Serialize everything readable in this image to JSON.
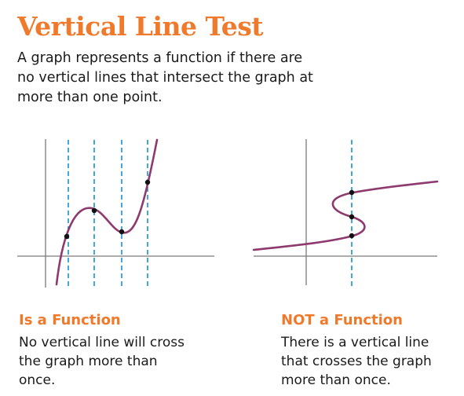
{
  "title": "Vertical Line Test",
  "intro": "A graph represents a function if there are no vertical lines that intersect the graph at more than one point.",
  "colors": {
    "accent": "#f07a2c",
    "curve": "#8e3a6e",
    "test_line": "#1a8fd6",
    "axis": "#7a7a7a",
    "point": "#111111"
  },
  "panels": [
    {
      "caption_title": "Is a Function",
      "caption_text": "No vertical line will cross the graph more than once."
    },
    {
      "caption_title": "NOT a Function",
      "caption_text": "There is a vertical line that crosses the graph more than once."
    }
  ]
}
